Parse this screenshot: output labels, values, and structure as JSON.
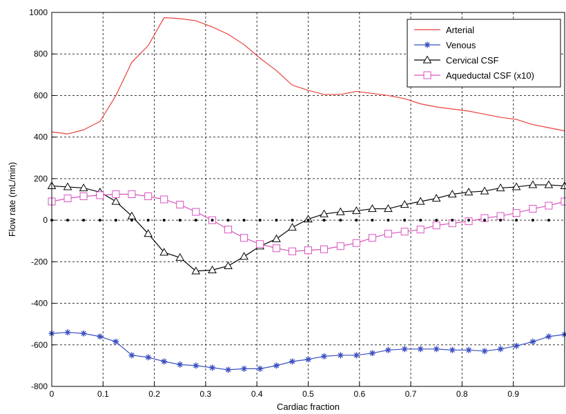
{
  "chart_data": {
    "type": "line",
    "title": "",
    "xlabel": "Cardiac fraction",
    "ylabel": "Flow rate (mL/min)",
    "xlim": [
      0,
      1
    ],
    "ylim": [
      -800,
      1000
    ],
    "xticks": [
      0,
      0.1,
      0.2,
      0.3,
      0.4,
      0.5,
      0.6,
      0.7,
      0.8,
      0.9
    ],
    "xtick_labels": [
      "0",
      "0.1",
      "0.2",
      "0.3",
      "0.4",
      "0.5",
      "0.6",
      "0.7",
      "0.8",
      "0.9"
    ],
    "yticks": [
      -800,
      -600,
      -400,
      -200,
      0,
      200,
      400,
      600,
      800,
      1000
    ],
    "ytick_labels": [
      "-800",
      "-600",
      "-400",
      "-200",
      "0",
      "200",
      "400",
      "600",
      "800",
      "1000"
    ],
    "grid": true,
    "legend_position": "top-right",
    "series": [
      {
        "name": "Arterial",
        "color": "#e8403a",
        "marker": "none",
        "x": [
          0,
          0.031,
          0.062,
          0.094,
          0.125,
          0.156,
          0.188,
          0.219,
          0.25,
          0.281,
          0.313,
          0.344,
          0.375,
          0.406,
          0.438,
          0.469,
          0.5,
          0.531,
          0.563,
          0.594,
          0.625,
          0.656,
          0.688,
          0.719,
          0.75,
          0.781,
          0.813,
          0.844,
          0.875,
          0.906,
          0.938,
          0.969,
          1.0
        ],
        "y": [
          425,
          415,
          435,
          475,
          600,
          760,
          840,
          975,
          970,
          960,
          930,
          895,
          845,
          780,
          720,
          650,
          625,
          605,
          605,
          620,
          610,
          600,
          585,
          560,
          545,
          535,
          525,
          510,
          495,
          485,
          460,
          445,
          430
        ]
      },
      {
        "name": "Venous",
        "color": "#3a4fc0",
        "marker": "star",
        "x": [
          0,
          0.031,
          0.062,
          0.094,
          0.125,
          0.156,
          0.188,
          0.219,
          0.25,
          0.281,
          0.313,
          0.344,
          0.375,
          0.406,
          0.438,
          0.469,
          0.5,
          0.531,
          0.563,
          0.594,
          0.625,
          0.656,
          0.688,
          0.719,
          0.75,
          0.781,
          0.813,
          0.844,
          0.875,
          0.906,
          0.938,
          0.969,
          1.0
        ],
        "y": [
          -545,
          -540,
          -545,
          -560,
          -585,
          -650,
          -660,
          -680,
          -695,
          -700,
          -710,
          -720,
          -715,
          -715,
          -700,
          -680,
          -670,
          -655,
          -650,
          -650,
          -640,
          -625,
          -620,
          -620,
          -620,
          -625,
          -625,
          -630,
          -620,
          -605,
          -585,
          -560,
          -550
        ]
      },
      {
        "name": "Cervical CSF",
        "color": "#000000",
        "marker": "triangle",
        "x": [
          0,
          0.031,
          0.062,
          0.094,
          0.125,
          0.156,
          0.188,
          0.219,
          0.25,
          0.281,
          0.313,
          0.344,
          0.375,
          0.406,
          0.438,
          0.469,
          0.5,
          0.531,
          0.563,
          0.594,
          0.625,
          0.656,
          0.688,
          0.719,
          0.75,
          0.781,
          0.813,
          0.844,
          0.875,
          0.906,
          0.938,
          0.969,
          1.0
        ],
        "y": [
          165,
          160,
          155,
          135,
          90,
          20,
          -65,
          -155,
          -180,
          -245,
          -240,
          -220,
          -175,
          -125,
          -90,
          -35,
          5,
          30,
          40,
          45,
          55,
          55,
          75,
          90,
          105,
          125,
          135,
          140,
          155,
          160,
          170,
          170,
          165
        ]
      },
      {
        "name": "Aqueductal CSF (x10)",
        "color": "#d852c0",
        "marker": "square",
        "x": [
          0,
          0.031,
          0.062,
          0.094,
          0.125,
          0.156,
          0.188,
          0.219,
          0.25,
          0.281,
          0.313,
          0.344,
          0.375,
          0.406,
          0.438,
          0.469,
          0.5,
          0.531,
          0.563,
          0.594,
          0.625,
          0.656,
          0.688,
          0.719,
          0.75,
          0.781,
          0.813,
          0.844,
          0.875,
          0.906,
          0.938,
          0.969,
          1.0
        ],
        "y": [
          90,
          105,
          115,
          120,
          125,
          125,
          115,
          100,
          75,
          40,
          0,
          -45,
          -85,
          -115,
          -135,
          -150,
          -145,
          -140,
          -125,
          -110,
          -85,
          -65,
          -55,
          -45,
          -25,
          -15,
          -5,
          10,
          20,
          35,
          55,
          70,
          90
        ]
      },
      {
        "name": "",
        "color": "#000000",
        "marker": "dot",
        "x": [
          0,
          0.031,
          0.062,
          0.094,
          0.125,
          0.156,
          0.188,
          0.219,
          0.25,
          0.281,
          0.313,
          0.344,
          0.375,
          0.406,
          0.438,
          0.469,
          0.5,
          0.531,
          0.563,
          0.594,
          0.625,
          0.656,
          0.688,
          0.719,
          0.75,
          0.781,
          0.813,
          0.844,
          0.875,
          0.906,
          0.938,
          0.969
        ],
        "y": [
          0,
          0,
          0,
          0,
          0,
          0,
          0,
          0,
          0,
          0,
          0,
          0,
          0,
          0,
          0,
          0,
          0,
          0,
          0,
          0,
          0,
          0,
          0,
          0,
          0,
          0,
          0,
          0,
          0,
          0,
          0,
          0
        ]
      }
    ]
  }
}
